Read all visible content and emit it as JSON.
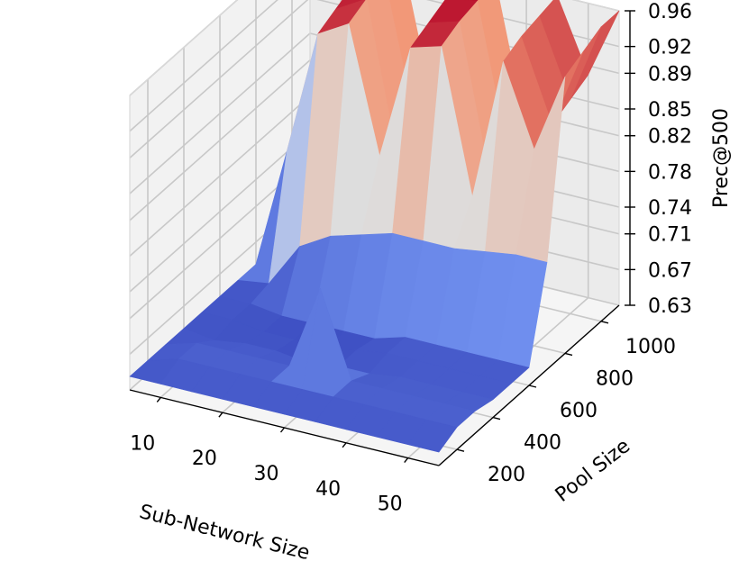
{
  "chart_data": {
    "type": "surface3d",
    "colormap": "coolwarm",
    "xlabel": "Sub-Network Size",
    "ylabel": "Pool Size",
    "zlabel": "Prec@500",
    "x_ticks": [
      "10",
      "20",
      "30",
      "40",
      "50"
    ],
    "y_ticks": [
      "200",
      "400",
      "600",
      "800",
      "1000"
    ],
    "z_ticks": [
      "0.63",
      "0.67",
      "0.71",
      "0.74",
      "0.78",
      "0.82",
      "0.85",
      "0.89",
      "0.92",
      "0.96"
    ],
    "xlim": [
      5,
      55
    ],
    "ylim": [
      100,
      1100
    ],
    "zlim": [
      0.63,
      0.96
    ],
    "grid": true,
    "x": [
      5,
      10,
      15,
      20,
      25,
      30,
      35,
      40,
      45,
      50,
      55
    ],
    "y": [
      100,
      200,
      300,
      400,
      500,
      600,
      700,
      800,
      900,
      1000,
      1100
    ],
    "z": [
      [
        0.645,
        0.645,
        0.645,
        0.645,
        0.645,
        0.645,
        0.645,
        0.645,
        0.645,
        0.645,
        0.645
      ],
      [
        0.645,
        0.655,
        0.655,
        0.655,
        0.655,
        0.655,
        0.655,
        0.655,
        0.655,
        0.655,
        0.655
      ],
      [
        0.645,
        0.655,
        0.655,
        0.655,
        0.655,
        0.75,
        0.655,
        0.655,
        0.655,
        0.655,
        0.655
      ],
      [
        0.645,
        0.64,
        0.645,
        0.645,
        0.64,
        0.645,
        0.645,
        0.65,
        0.65,
        0.65,
        0.65
      ],
      [
        0.645,
        0.645,
        0.64,
        0.64,
        0.635,
        0.645,
        0.65,
        0.65,
        0.65,
        0.65,
        0.65
      ],
      [
        0.645,
        0.645,
        0.64,
        0.64,
        0.64,
        0.64,
        0.65,
        0.65,
        0.65,
        0.65,
        0.65
      ],
      [
        0.645,
        0.65,
        0.7,
        0.72,
        0.73,
        0.74,
        0.74,
        0.74,
        0.745,
        0.75,
        0.75
      ],
      [
        0.645,
        0.78,
        0.92,
        0.94,
        0.8,
        0.93,
        0.94,
        0.78,
        0.94,
        0.85,
        0.94
      ],
      [
        0.645,
        0.76,
        0.93,
        0.95,
        0.78,
        0.94,
        0.95,
        0.78,
        0.95,
        0.86,
        0.95
      ],
      [
        0.645,
        0.76,
        0.94,
        0.955,
        0.8,
        0.95,
        0.955,
        0.79,
        0.955,
        0.87,
        0.96
      ],
      [
        0.645,
        0.76,
        0.94,
        0.955,
        0.8,
        0.955,
        0.96,
        0.8,
        0.96,
        0.88,
        0.96
      ]
    ]
  }
}
